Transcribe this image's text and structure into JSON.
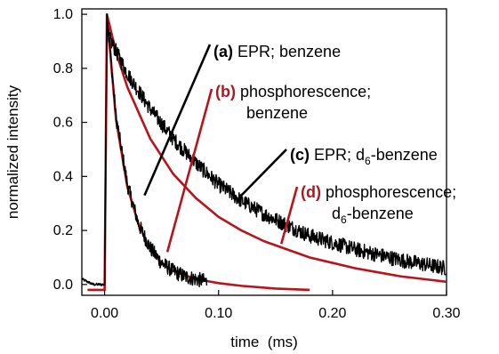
{
  "chart_data": {
    "type": "line",
    "xlabel": "time  (ms)",
    "ylabel": "normalized intensity",
    "xlim": [
      -0.02,
      0.3
    ],
    "ylim": [
      -0.04,
      1.02
    ],
    "x_ticks": [
      0.0,
      0.1,
      0.2,
      0.3
    ],
    "x_tick_labels": [
      "0.00",
      "0.10",
      "0.20",
      "0.30"
    ],
    "y_ticks": [
      0.0,
      0.2,
      0.4,
      0.6,
      0.8,
      1.0
    ],
    "y_tick_labels": [
      "0.0",
      "0.2",
      "0.4",
      "0.6",
      "0.8",
      "1.0"
    ],
    "grid": false,
    "legend": "none",
    "colors": {
      "black": "#000000",
      "red": "#b8141c"
    },
    "series": [
      {
        "letter": "a",
        "color": "#000000",
        "noisy": true,
        "x": [
          -0.02,
          -0.01,
          0.0,
          0.002,
          0.01,
          0.02,
          0.03,
          0.04,
          0.05,
          0.06,
          0.07,
          0.08,
          0.09
        ],
        "y": [
          0.02,
          0.0,
          0.0,
          1.0,
          0.62,
          0.37,
          0.22,
          0.135,
          0.08,
          0.05,
          0.03,
          0.02,
          0.01
        ]
      },
      {
        "letter": "b",
        "color": "#b8141c",
        "noisy": false,
        "x": [
          -0.015,
          0.0,
          0.002,
          0.01,
          0.02,
          0.03,
          0.04,
          0.05,
          0.06,
          0.08,
          0.1,
          0.12,
          0.15,
          0.18
        ],
        "y": [
          -0.02,
          -0.02,
          1.0,
          0.61,
          0.36,
          0.22,
          0.13,
          0.08,
          0.05,
          0.02,
          0.005,
          -0.005,
          -0.015,
          -0.02
        ]
      },
      {
        "letter": "c",
        "color": "#000000",
        "noisy": true,
        "x": [
          0.0,
          0.002,
          0.02,
          0.04,
          0.06,
          0.08,
          0.1,
          0.12,
          0.14,
          0.16,
          0.18,
          0.2,
          0.22,
          0.24,
          0.26,
          0.28,
          0.3
        ],
        "y": [
          0.0,
          0.93,
          0.78,
          0.65,
          0.54,
          0.45,
          0.37,
          0.31,
          0.26,
          0.22,
          0.18,
          0.155,
          0.13,
          0.11,
          0.09,
          0.075,
          0.06
        ]
      },
      {
        "letter": "d",
        "color": "#b8141c",
        "noisy": false,
        "x": [
          0.002,
          0.01,
          0.02,
          0.04,
          0.06,
          0.08,
          0.1,
          0.12,
          0.14,
          0.16,
          0.18,
          0.2,
          0.22,
          0.24,
          0.26,
          0.28,
          0.3
        ],
        "y": [
          1.0,
          0.86,
          0.73,
          0.54,
          0.41,
          0.32,
          0.25,
          0.2,
          0.16,
          0.13,
          0.1,
          0.08,
          0.06,
          0.045,
          0.03,
          0.02,
          0.01
        ]
      }
    ],
    "annotations": [
      {
        "id": "a",
        "letter": "(a)",
        "line1": " EPR; benzene",
        "line2": "",
        "letter_color": "#000000",
        "pointer_color": "#000000",
        "pointer_to": [
          0.035,
          0.33
        ]
      },
      {
        "id": "b",
        "letter": "(b)",
        "line1": " phosphorescence;",
        "line2": "benzene",
        "letter_color": "#b8141c",
        "pointer_color": "#b8141c",
        "pointer_to": [
          0.055,
          0.12
        ]
      },
      {
        "id": "c",
        "letter": "(c)",
        "line1": " EPR; d",
        "line1_sub": "6",
        "line1_tail": "-benzene",
        "line2": "",
        "letter_color": "#000000",
        "pointer_color": "#000000",
        "pointer_to": [
          0.12,
          0.33
        ]
      },
      {
        "id": "d",
        "letter": "(d)",
        "line1": " phosphorescence;",
        "line2_pre": "d",
        "line2_sub": "6",
        "line2_post": "-benzene",
        "letter_color": "#b8141c",
        "pointer_color": "#b8141c",
        "pointer_to": [
          0.155,
          0.15
        ]
      }
    ]
  }
}
